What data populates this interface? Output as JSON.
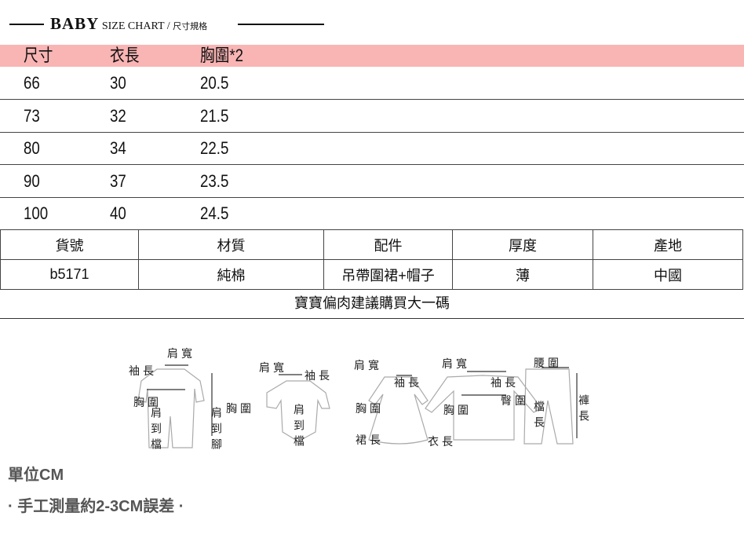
{
  "header": {
    "brand": "BABY",
    "subtitle": "SIZE CHART",
    "separator": "/",
    "zh": "尺寸規格"
  },
  "size_table": {
    "columns": [
      "尺寸",
      "衣長",
      "胸圍*2"
    ],
    "rows": [
      [
        "66",
        "30",
        "20.5"
      ],
      [
        "73",
        "32",
        "21.5"
      ],
      [
        "80",
        "34",
        "22.5"
      ],
      [
        "90",
        "37",
        "23.5"
      ],
      [
        "100",
        "40",
        "24.5"
      ]
    ]
  },
  "product_table": {
    "headers": [
      "貨號",
      "材質",
      "配件",
      "厚度",
      "產地"
    ],
    "values": [
      "b5171",
      "純棉",
      "吊帶圍裙+帽子",
      "薄",
      "中國"
    ]
  },
  "note": "寶寶偏肉建議購買大一碼",
  "diagram_labels": {
    "shoulder": "肩寬",
    "sleeve": "袖長",
    "chest": "胸圍",
    "shoulder_crotch": "肩到檔",
    "shoulder_feet": "肩到腳",
    "skirt": "裙長",
    "length": "衣長",
    "waist": "腰圍",
    "hip": "臀圍",
    "rise": "檔長",
    "pants": "褲長"
  },
  "footer": {
    "unit": "單位CM",
    "tolerance": "· 手工測量約2-3CM誤差 ·"
  },
  "colors": {
    "header_band": "#f9b4b4"
  }
}
